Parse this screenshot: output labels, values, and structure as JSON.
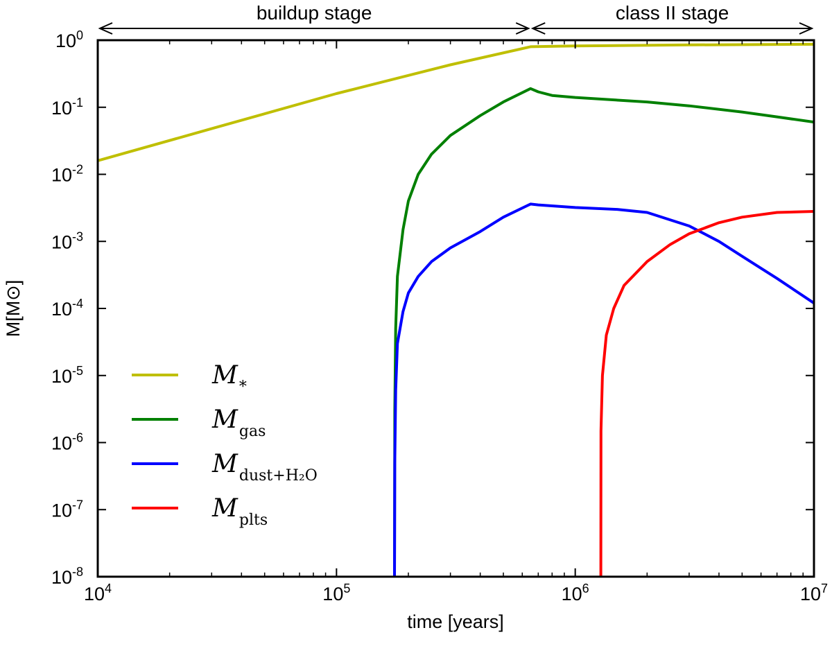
{
  "chart_data": {
    "type": "line",
    "title": "",
    "xlabel": "time [years]",
    "ylabel": "M[M⊙]",
    "xscale": "log",
    "yscale": "log",
    "xlim": [
      10000,
      10000000
    ],
    "ylim": [
      1e-08,
      1
    ],
    "grid": false,
    "legend_position": "bottom-left",
    "x_ticks": [
      {
        "base": "10",
        "exp": "4"
      },
      {
        "base": "10",
        "exp": "5"
      },
      {
        "base": "10",
        "exp": "6"
      },
      {
        "base": "10",
        "exp": "7"
      }
    ],
    "y_ticks": [
      {
        "base": "10",
        "exp": "0"
      },
      {
        "base": "10",
        "exp": "-1"
      },
      {
        "base": "10",
        "exp": "-2"
      },
      {
        "base": "10",
        "exp": "-3"
      },
      {
        "base": "10",
        "exp": "-4"
      },
      {
        "base": "10",
        "exp": "-5"
      },
      {
        "base": "10",
        "exp": "-6"
      },
      {
        "base": "10",
        "exp": "-7"
      },
      {
        "base": "10",
        "exp": "-8"
      }
    ],
    "stages": [
      {
        "label": "buildup stage",
        "x_start": 10000,
        "x_end": 650000
      },
      {
        "label": "class II stage",
        "x_start": 650000,
        "x_end": 10000000
      }
    ],
    "series": [
      {
        "name": "M*",
        "legend_main": "M",
        "legend_sub": "*",
        "color": "#bfbf00",
        "points": [
          [
            10000,
            0.016
          ],
          [
            30000,
            0.048
          ],
          [
            100000,
            0.16
          ],
          [
            300000,
            0.43
          ],
          [
            650000,
            0.8
          ],
          [
            1000000,
            0.82
          ],
          [
            3000000,
            0.85
          ],
          [
            10000000,
            0.87
          ]
        ]
      },
      {
        "name": "Mgas",
        "legend_main": "M",
        "legend_sub": "gas",
        "color": "#008000",
        "points": [
          [
            175000,
            1e-08
          ],
          [
            175500,
            3e-06
          ],
          [
            177000,
            5e-05
          ],
          [
            180000,
            0.0003
          ],
          [
            190000,
            0.0015
          ],
          [
            200000,
            0.004
          ],
          [
            220000,
            0.01
          ],
          [
            250000,
            0.02
          ],
          [
            300000,
            0.038
          ],
          [
            400000,
            0.075
          ],
          [
            500000,
            0.12
          ],
          [
            650000,
            0.19
          ],
          [
            700000,
            0.17
          ],
          [
            800000,
            0.15
          ],
          [
            1000000,
            0.14
          ],
          [
            2000000,
            0.12
          ],
          [
            3000000,
            0.105
          ],
          [
            5000000,
            0.085
          ],
          [
            7000000,
            0.072
          ],
          [
            10000000,
            0.06
          ]
        ]
      },
      {
        "name": "Mdust+H2O",
        "legend_main": "M",
        "legend_sub": "dust+H₂O",
        "color": "#0000ff",
        "points": [
          [
            175000,
            1e-08
          ],
          [
            175500,
            5e-07
          ],
          [
            177000,
            6e-06
          ],
          [
            180000,
            3e-05
          ],
          [
            190000,
            9e-05
          ],
          [
            200000,
            0.00017
          ],
          [
            220000,
            0.0003
          ],
          [
            250000,
            0.0005
          ],
          [
            300000,
            0.0008
          ],
          [
            400000,
            0.0014
          ],
          [
            500000,
            0.0023
          ],
          [
            650000,
            0.0036
          ],
          [
            700000,
            0.0035
          ],
          [
            1000000,
            0.0032
          ],
          [
            1500000,
            0.003
          ],
          [
            2000000,
            0.0027
          ],
          [
            3000000,
            0.0017
          ],
          [
            4000000,
            0.001
          ],
          [
            5000000,
            0.0006
          ],
          [
            7000000,
            0.00028
          ],
          [
            10000000,
            0.00012
          ]
        ]
      },
      {
        "name": "Mplts",
        "legend_main": "M",
        "legend_sub": "plts",
        "color": "#ff0000",
        "points": [
          [
            1280000,
            1e-08
          ],
          [
            1282000,
            1.5e-06
          ],
          [
            1300000,
            1e-05
          ],
          [
            1350000,
            4e-05
          ],
          [
            1450000,
            0.0001
          ],
          [
            1600000,
            0.00022
          ],
          [
            2000000,
            0.0005
          ],
          [
            2500000,
            0.0009
          ],
          [
            3000000,
            0.0013
          ],
          [
            4000000,
            0.0019
          ],
          [
            5000000,
            0.0023
          ],
          [
            7000000,
            0.0027
          ],
          [
            10000000,
            0.0028
          ]
        ]
      }
    ]
  }
}
